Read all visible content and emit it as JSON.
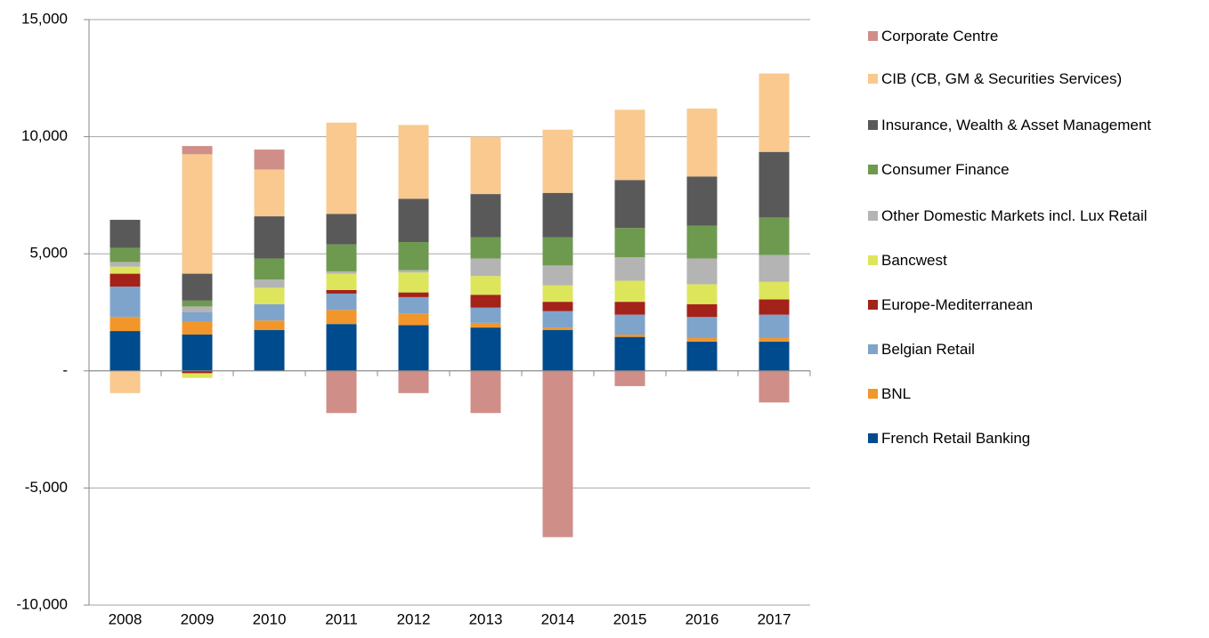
{
  "chart_data": {
    "type": "stacked_bar",
    "categories": [
      "2008",
      "2009",
      "2010",
      "2011",
      "2012",
      "2013",
      "2014",
      "2015",
      "2016",
      "2017"
    ],
    "series": [
      {
        "name": "French Retail Banking",
        "color": "#004b8d",
        "values": [
          1700,
          1550,
          1750,
          2000,
          1950,
          1850,
          1750,
          1450,
          1250,
          1250
        ]
      },
      {
        "name": "BNL",
        "color": "#f2962b",
        "values": [
          600,
          550,
          400,
          600,
          500,
          200,
          100,
          100,
          150,
          150
        ]
      },
      {
        "name": "Belgian Retail",
        "color": "#7ea4cb",
        "values": [
          1300,
          400,
          700,
          700,
          700,
          650,
          700,
          850,
          900,
          1000
        ]
      },
      {
        "name": "Europe-Mediterranean",
        "color": "#a3221a",
        "values": [
          550,
          -100,
          0,
          150,
          200,
          550,
          400,
          550,
          550,
          650
        ]
      },
      {
        "name": "Bancwest",
        "color": "#dde65a",
        "values": [
          300,
          -200,
          700,
          700,
          850,
          800,
          700,
          900,
          850,
          750
        ]
      },
      {
        "name": "Other Domestic Markets incl. Lux Retail",
        "color": "#b4b4b4",
        "values": [
          200,
          250,
          350,
          100,
          100,
          750,
          850,
          1000,
          1100,
          1150
        ]
      },
      {
        "name": "Consumer Finance",
        "color": "#6e9a4f",
        "values": [
          600,
          250,
          900,
          1150,
          1200,
          900,
          1200,
          1250,
          1400,
          1600
        ]
      },
      {
        "name": "Insurance, Wealth & Asset Management",
        "color": "#595959",
        "values": [
          1200,
          1150,
          1800,
          1300,
          1850,
          1850,
          1900,
          2050,
          2100,
          2800
        ]
      },
      {
        "name": "CIB (CB, GM & Securities Services)",
        "color": "#f9c98f",
        "values": [
          -950,
          5100,
          2000,
          3900,
          3150,
          2450,
          2700,
          3000,
          2900,
          3350
        ]
      },
      {
        "name": "Corporate Centre",
        "color": "#d08e88",
        "values": [
          0,
          350,
          850,
          -1800,
          -950,
          -1800,
          -7100,
          -650,
          0,
          -1350
        ]
      }
    ],
    "ylim": [
      -10000,
      15000
    ],
    "yticks": [
      {
        "value": -10000,
        "label": "-10,000"
      },
      {
        "value": -5000,
        "label": "-5,000"
      },
      {
        "value": 0,
        "label": "-"
      },
      {
        "value": 5000,
        "label": "5,000"
      },
      {
        "value": 10000,
        "label": "10,000"
      },
      {
        "value": 15000,
        "label": "15,000"
      }
    ],
    "grid": true,
    "legend": "right"
  }
}
